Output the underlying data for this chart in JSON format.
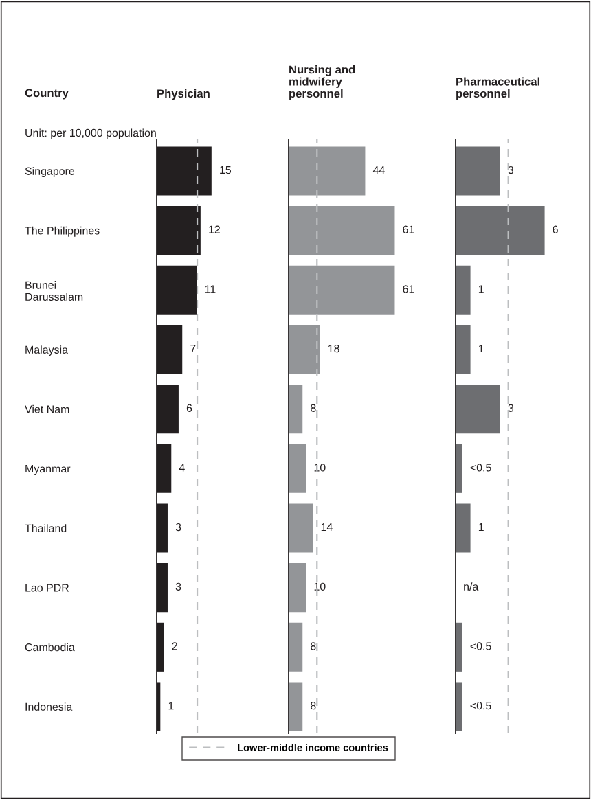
{
  "chart_data": [
    {
      "type": "bar",
      "orientation": "horizontal",
      "title": "Physician",
      "ylabel": "Country",
      "annotations": [
        "Unit: per 10,000 population"
      ],
      "categories": [
        "Singapore",
        "The Philippines",
        "Brunei\nDarussalam",
        "Malaysia",
        "Viet Nam",
        "Myanmar",
        "Thailand",
        "Lao PDR",
        "Cambodia",
        "Indonesia"
      ],
      "values": [
        15,
        12,
        11,
        7,
        6,
        4,
        3,
        3,
        2,
        1
      ],
      "color": "#231f20",
      "data_labels": true,
      "tick_labels": "y",
      "ref_lines": [
        {
          "axis": "x",
          "value": 11.1,
          "label": "Lower-middle income countries",
          "color": "#bcbec0",
          "line_style": "dashed"
        }
      ],
      "legend": "bottom"
    },
    {
      "type": "bar",
      "orientation": "horizontal",
      "title": "Nursing and\nmidwifery\npersonnel",
      "values": [
        44,
        61,
        61,
        18,
        8,
        10,
        14,
        10,
        8,
        8
      ],
      "color": "#939598",
      "data_labels": true,
      "tick_labels": false,
      "ref_lines": [
        {
          "axis": "x",
          "value": 16.3,
          "color": "#bcbec0",
          "line_style": "dashed"
        }
      ]
    },
    {
      "type": "bar",
      "orientation": "horizontal",
      "title": "Pharmaceutical\npersonnel",
      "values": [
        3,
        6,
        1,
        1,
        3,
        0.45,
        1,
        null,
        0.45,
        0.45
      ],
      "value_labels": [
        "3",
        "6",
        "1",
        "1",
        "3",
        "<0.5",
        "1",
        "n/a",
        "<0.5",
        "<0.5"
      ],
      "color": "#6d6e71",
      "tick_labels": false,
      "ref_lines": [
        {
          "axis": "x",
          "value": 3.55,
          "color": "#bcbec0",
          "line_style": "dashed"
        }
      ]
    }
  ]
}
